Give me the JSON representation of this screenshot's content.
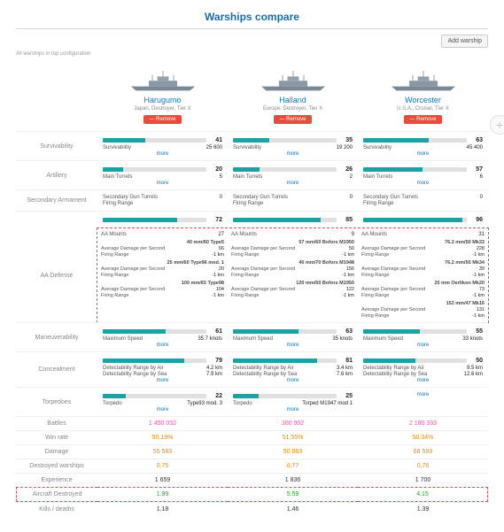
{
  "title": "Warships compare",
  "addWarship": "Add warship",
  "note": "All warships in top configuration",
  "removeLabel": "— Remove",
  "moreLabel": "more",
  "ships": [
    {
      "name": "Harugumo",
      "sub": "Japan, Destroyer, Tier X"
    },
    {
      "name": "Halland",
      "sub": "Europe, Destroyer, Tier X"
    },
    {
      "name": "Worcester",
      "sub": "U.S.A., Cruiser, Tier X"
    }
  ],
  "sections": {
    "surv": {
      "label": "Survivability",
      "bars": [
        41,
        35,
        63
      ],
      "stats": [
        [
          [
            "Survivability",
            "25 600"
          ]
        ],
        [
          [
            "Survivability",
            "19 200"
          ]
        ],
        [
          [
            "Survivability",
            "45 400"
          ]
        ]
      ]
    },
    "art": {
      "label": "Artillery",
      "bars": [
        20,
        26,
        57
      ],
      "stats": [
        [
          [
            "Main Turrets",
            "5"
          ]
        ],
        [
          [
            "Main Turrets",
            "2"
          ]
        ],
        [
          [
            "Main Turrets",
            "6"
          ]
        ]
      ]
    },
    "sec": {
      "label": "Secondary Armament",
      "stats": [
        [
          [
            "Secondary Gun Turrets",
            "0"
          ],
          [
            "Firing Range",
            ""
          ]
        ],
        [
          [
            "Secondary Gun Turrets",
            "0"
          ],
          [
            "Firing Range",
            ""
          ]
        ],
        [
          [
            "Secondary Gun Turrets",
            "0"
          ],
          [
            "Firing Range",
            ""
          ]
        ]
      ]
    },
    "aa": {
      "label": "AA Defense",
      "bars": [
        72,
        85,
        96
      ],
      "mounts": [
        [
          "AA Mounts",
          "27"
        ],
        [
          "AA Mounts",
          "9"
        ],
        [
          "AA Mounts",
          "31"
        ]
      ],
      "g": [
        [
          {
            "t": "40 mm/60 Type5",
            "d": "66",
            "r": "-1 km"
          },
          {
            "t": "25 mm/60 Type96 mod. 1",
            "d": "20",
            "r": "-1 km"
          },
          {
            "t": "100 mm/65 Type98",
            "d": "104",
            "r": "-1 km"
          }
        ],
        [
          {
            "t": "57 mm/60 Bofors M1950",
            "d": "50",
            "r": "-1 km"
          },
          {
            "t": "40 mm/70 Bofors M1948",
            "d": "156",
            "r": "-1 km"
          },
          {
            "t": "120 mm/50 Bofors M1950",
            "d": "122",
            "r": "-1 km"
          }
        ],
        [
          {
            "t": "76.2 mm/50 Mk33",
            "d": "228",
            "r": "-1 km"
          },
          {
            "t": "76.2 mm/50 Mk34",
            "d": "39",
            "r": "-1 km"
          },
          {
            "t": "20 mm Oerlikon Mk20",
            "d": "73",
            "r": "-1 km"
          },
          {
            "t": "152 mm/47 Mk16",
            "d": "131",
            "r": "-1 km"
          }
        ]
      ]
    },
    "man": {
      "label": "Maneuverability",
      "bars": [
        61,
        63,
        55
      ],
      "stats": [
        [
          [
            "Maximum Speed",
            "35.7 knots"
          ]
        ],
        [
          [
            "Maximum Speed",
            "35 knots"
          ]
        ],
        [
          [
            "Maximum Speed",
            "33 knots"
          ]
        ]
      ]
    },
    "con": {
      "label": "Concealment",
      "bars": [
        79,
        81,
        50
      ],
      "stats": [
        [
          [
            "Detectability Range by Air",
            "4.2 km"
          ],
          [
            "Detectability Range by Sea",
            "7.9 km"
          ]
        ],
        [
          [
            "Detectability Range by Air",
            "3.4 km"
          ],
          [
            "Detectability Range by Sea",
            "7.6 km"
          ]
        ],
        [
          [
            "Detectability Range by Air",
            "9.5 km"
          ],
          [
            "Detectability Range by Sea",
            "12.6 km"
          ]
        ]
      ]
    },
    "tor": {
      "label": "Torpedoes",
      "bars": [
        22,
        25,
        0
      ],
      "stats": [
        [
          [
            "Torpedo",
            "Type93 mod. 3"
          ]
        ],
        [
          [
            "Torpedo",
            "Torped M1947 mod 1"
          ]
        ],
        []
      ]
    }
  },
  "summary": [
    {
      "l": "Battles",
      "v": [
        "1 450 032",
        "300 902",
        "2 180 333"
      ],
      "c": "pink"
    },
    {
      "l": "Win rate",
      "v": [
        "50,19%",
        "51,55%",
        "50,34%"
      ],
      "c": "orange"
    },
    {
      "l": "Damage",
      "v": [
        "55 583",
        "50 863",
        "68 593"
      ],
      "c": "orange"
    },
    {
      "l": "Destroyed warships",
      "v": [
        "0,75",
        "0,77",
        "0,76"
      ],
      "c": "orange"
    },
    {
      "l": "Experience",
      "v": [
        "1 659",
        "1 836",
        "1 700"
      ],
      "c": ""
    },
    {
      "l": "Aircraft Destroyed",
      "v": [
        "1.99",
        "5.59",
        "4.15"
      ],
      "c": "green",
      "box": true
    },
    {
      "l": "Kills / deaths",
      "v": [
        "1.18",
        "1.46",
        "1.39"
      ],
      "c": ""
    }
  ]
}
